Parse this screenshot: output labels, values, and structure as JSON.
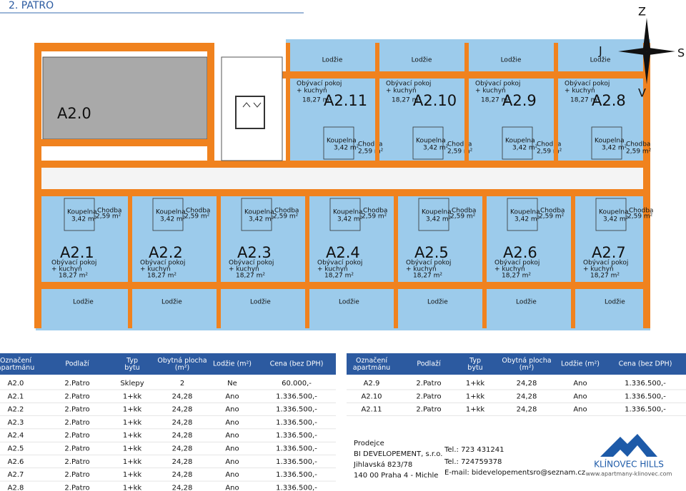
{
  "header": {
    "title": "2. PATRO"
  },
  "compass": {
    "north": "Z",
    "east": "S",
    "west": "J",
    "south": "V"
  },
  "plan": {
    "gray_unit": "A2.0",
    "room_labels": {
      "living": "Obývací pokoj",
      "living2": "+ kuchyň",
      "living_area": "18,27 m²",
      "bath": "Koupelna",
      "bath_area": "3,42 m²",
      "hall": "Chodba",
      "hall_area": "2,59 m²",
      "balcony": "Lodžie"
    },
    "top_units": [
      "A2.11",
      "A2.10",
      "A2.9",
      "A2.8"
    ],
    "bottom_units": [
      "A2.1",
      "A2.2",
      "A2.3",
      "A2.4",
      "A2.5",
      "A2.6",
      "A2.7"
    ]
  },
  "tables": [
    {
      "headers": [
        "Označení apartmánu",
        "Podlaží",
        "Typ bytu",
        "Obytná plocha (m²)",
        "Lodžie (m²)",
        "Cena (bez DPH)"
      ],
      "rows": [
        [
          "A2.0",
          "2.Patro",
          "Sklepy",
          "2",
          "Ne",
          "60.000,-"
        ],
        [
          "A2.1",
          "2.Patro",
          "1+kk",
          "24,28",
          "Ano",
          "1.336.500,-"
        ],
        [
          "A2.2",
          "2.Patro",
          "1+kk",
          "24,28",
          "Ano",
          "1.336.500,-"
        ],
        [
          "A2.3",
          "2.Patro",
          "1+kk",
          "24,28",
          "Ano",
          "1.336.500,-"
        ],
        [
          "A2.4",
          "2.Patro",
          "1+kk",
          "24,28",
          "Ano",
          "1.336.500,-"
        ],
        [
          "A2.5",
          "2.Patro",
          "1+kk",
          "24,28",
          "Ano",
          "1.336.500,-"
        ],
        [
          "A2.6",
          "2.Patro",
          "1+kk",
          "24,28",
          "Ano",
          "1.336.500,-"
        ],
        [
          "A2.7",
          "2.Patro",
          "1+kk",
          "24,28",
          "Ano",
          "1.336.500,-"
        ],
        [
          "A2.8",
          "2.Patro",
          "1+kk",
          "24,28",
          "Ano",
          "1.336.500,-"
        ]
      ]
    },
    {
      "headers": [
        "Označení apartmánu",
        "Podlaží",
        "Typ bytu",
        "Obytná plocha (m²)",
        "Lodžie (m²)",
        "Cena (bez DPH)"
      ],
      "rows": [
        [
          "A2.9",
          "2.Patro",
          "1+kk",
          "24,28",
          "Ano",
          "1.336.500,-"
        ],
        [
          "A2.10",
          "2.Patro",
          "1+kk",
          "24,28",
          "Ano",
          "1.336.500,-"
        ],
        [
          "A2.11",
          "2.Patro",
          "1+kk",
          "24,28",
          "Ano",
          "1.336.500,-"
        ]
      ]
    }
  ],
  "contact": {
    "label": "Prodejce",
    "company": "BI DEVELOPEMENT, s.r.o.",
    "street": "Jihlavská 823/78",
    "city": "140 00  Praha 4 - Michle",
    "tel1": "Tel.: 723 431241",
    "tel2": "Tel.: 724759378",
    "email": "E-mail: bidevelopementsro@seznam.cz"
  },
  "logo": {
    "name": "KLÍNOVEC HILLS",
    "url": "www.apartmany-klinovec.com"
  }
}
